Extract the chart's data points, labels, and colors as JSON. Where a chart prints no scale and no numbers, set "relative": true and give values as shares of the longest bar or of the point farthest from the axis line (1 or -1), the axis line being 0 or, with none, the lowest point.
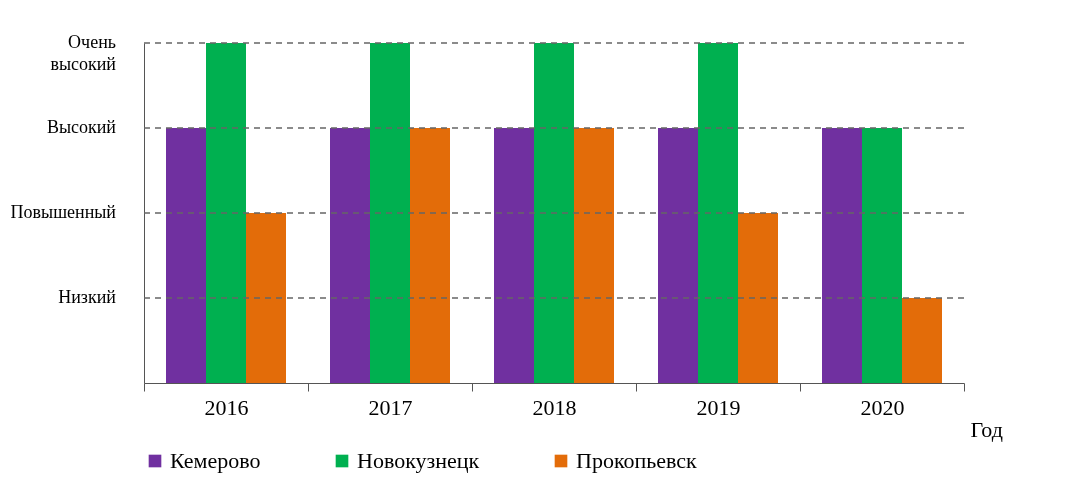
{
  "chart_data": {
    "type": "bar",
    "categories": [
      "2016",
      "2017",
      "2018",
      "2019",
      "2020"
    ],
    "xlabel": "Год",
    "relative": true,
    "series": [
      {
        "name": "Кемерово",
        "color": "#7030a0",
        "values": [
          0.75,
          0.75,
          0.75,
          0.75,
          0.75
        ]
      },
      {
        "name": "Новокузнецк",
        "color": "#00b050",
        "values": [
          1,
          1,
          1,
          1,
          0.75
        ]
      },
      {
        "name": "Прокопьевск",
        "color": "#e36c09",
        "values": [
          0.5,
          0.75,
          0.75,
          0.5,
          0.25
        ]
      }
    ],
    "ref_lines": [
      {
        "axis": "y",
        "value": 0.25,
        "label": "Низкий",
        "line_style": "dashed"
      },
      {
        "axis": "y",
        "value": 0.5,
        "label": "Повышенный",
        "line_style": "dashed"
      },
      {
        "axis": "y",
        "value": 0.75,
        "label": "Высокий",
        "line_style": "dashed"
      },
      {
        "axis": "y",
        "value": 1,
        "label": "Очень высокий",
        "line_style": "dashed"
      }
    ],
    "legend": "bottom"
  }
}
